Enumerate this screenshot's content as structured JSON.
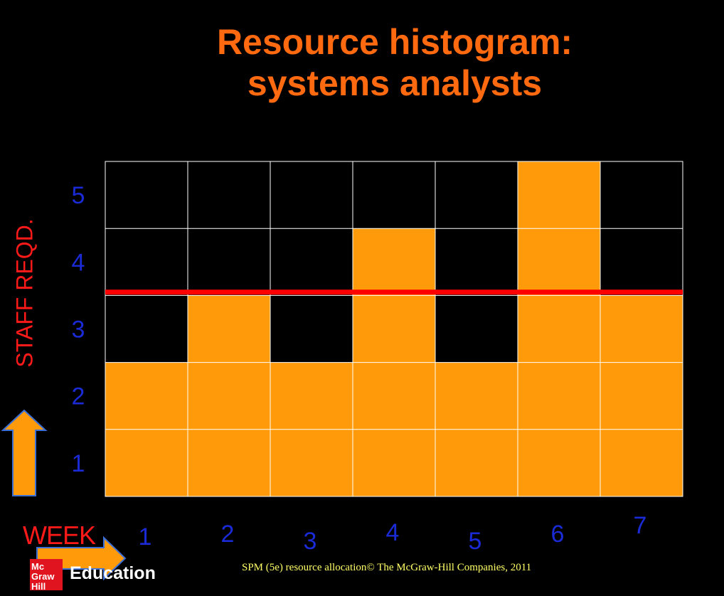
{
  "title_line1": "Resource histogram:",
  "title_line2": "systems analysts",
  "footer": "SPM (5e)  resource allocation© The McGraw-Hill Companies, 2011",
  "logo": {
    "line1": "Mc",
    "line2": "Graw",
    "line3": "Hill",
    "word": "Education"
  },
  "colors": {
    "bar": "#ff9a0a",
    "limit": "#ff0000",
    "ticks": "#1a2bd6",
    "axis_labels": "#ff1a1a",
    "title": "#ff6a10"
  },
  "icons": {
    "y_arrow": "up-arrow-icon",
    "x_arrow": "right-arrow-icon"
  },
  "chart_data": {
    "type": "bar",
    "title": "Resource histogram: systems analysts",
    "xlabel": "WEEK",
    "ylabel": "STAFF REQD.",
    "categories": [
      "1",
      "2",
      "3",
      "4",
      "5",
      "6",
      "7"
    ],
    "values": [
      2,
      3,
      2,
      4,
      2,
      5,
      3
    ],
    "y_ticks": [
      "1",
      "2",
      "3",
      "4",
      "5"
    ],
    "ylim": [
      0,
      5
    ],
    "limit_line": 3.05,
    "grid": true,
    "legend": "none"
  }
}
